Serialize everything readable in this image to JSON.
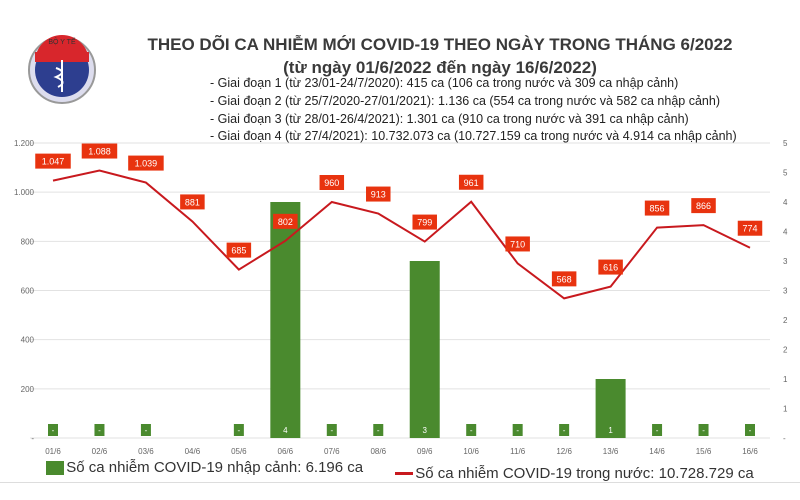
{
  "header": {
    "title": "THEO DÕI CA NHIỄM MỚI COVID-19 THEO NGÀY TRONG THÁNG 6/2022",
    "subtitle": "(từ ngày 01/6/2022 đến ngày 16/6/2022)",
    "notes": [
      "- Giai đoạn 1 (từ 23/01-24/7/2020): 415 ca (106 ca trong nước và 309 ca nhập cảnh)",
      "- Giai đoạn 2 (từ 25/7/2020-27/01/2021): 1.136 ca (554 ca trong nước và 582 ca nhập cảnh)",
      "- Giai đoạn 3 (từ 28/01-26/4/2021): 1.301 ca (910 ca trong nước và 391 ca nhập cảnh)",
      "- Giai đoạn 4 (từ 27/4/2021): 10.732.073 ca (10.727.159 ca trong nước và 4.914 ca nhập cảnh)"
    ],
    "logo_text": "BỘ Y TẾ · MINISTRY OF HEALTH"
  },
  "chart_data": {
    "type": "bar+line",
    "categories": [
      "01/6",
      "02/6",
      "03/6",
      "04/6",
      "05/6",
      "06/6",
      "07/6",
      "08/6",
      "09/6",
      "10/6",
      "11/6",
      "12/6",
      "13/6",
      "14/6",
      "15/6",
      "16/6"
    ],
    "series": [
      {
        "name": "Số ca nhiễm COVID-19 nhập cảnh: 6.196 ca",
        "type": "bar",
        "axis": "right",
        "color": "#4a8a2e",
        "values": [
          0,
          0,
          0,
          null,
          0,
          4,
          0,
          0,
          3,
          0,
          0,
          0,
          1,
          0,
          0,
          0
        ],
        "labels": [
          "-",
          "-",
          "-",
          "",
          "-",
          "4",
          "-",
          "-",
          "3",
          "-",
          "-",
          "-",
          "1",
          "-",
          "-",
          "-"
        ]
      },
      {
        "name": "Số ca nhiễm COVID-19 trong nước: 10.728.729 ca",
        "type": "line",
        "axis": "left",
        "color": "#c8191e",
        "values": [
          1047,
          1088,
          1039,
          881,
          685,
          802,
          960,
          913,
          799,
          961,
          710,
          568,
          616,
          856,
          866,
          774
        ],
        "labels": [
          "1.047",
          "1.088",
          "1.039",
          "881",
          "685",
          "802",
          "960",
          "913",
          "799",
          "961",
          "710",
          "568",
          "616",
          "856",
          "866",
          "774"
        ]
      }
    ],
    "y_left": {
      "ylim": [
        0,
        1200
      ],
      "ticks": [
        "-",
        "200",
        "400",
        "600",
        "800",
        "1.000",
        "1.200"
      ]
    },
    "y_right": {
      "ylim": [
        0,
        5
      ],
      "ticks": [
        "-",
        "1",
        "1",
        "2",
        "2",
        "3",
        "3",
        "4",
        "4",
        "5",
        "5"
      ]
    },
    "label_color": "#e8330f",
    "grid": true,
    "legend": "bottom"
  }
}
